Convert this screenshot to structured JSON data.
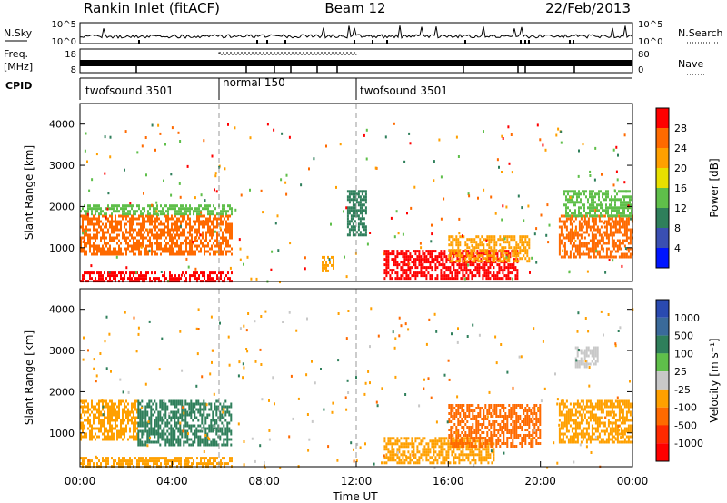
{
  "header": {
    "station": "Rankin Inlet (fitACF)",
    "beam": "Beam 12",
    "date": "22/Feb/2013"
  },
  "strips": {
    "nsky": {
      "label": "N.Sky",
      "right_label": "N.Search",
      "left_ticks": [
        "10^5",
        "10^0"
      ],
      "right_ticks": [
        "10^5",
        "10^0"
      ]
    },
    "freq": {
      "label_line1": "Freq.",
      "label_line2": "[MHz]",
      "right_label": "Nave",
      "left_ticks": [
        "18",
        "8"
      ],
      "right_ticks": [
        "80",
        "0"
      ]
    },
    "cpid": {
      "label": "CPID",
      "segments": [
        {
          "start": 0.0,
          "end": 6.05,
          "label": "twofsound 3501"
        },
        {
          "start": 6.05,
          "end": 12.0,
          "label": "normal 150"
        },
        {
          "start": 12.0,
          "end": 24.0,
          "label": "twofsound 3501"
        }
      ]
    }
  },
  "chart_data": [
    {
      "type": "heatmap",
      "title": "",
      "xlabel": "",
      "ylabel": "Slant Range [km]",
      "xlim": [
        0,
        24
      ],
      "ylim": [
        180,
        4500
      ],
      "y_ticks": [
        "1000",
        "2000",
        "3000",
        "4000"
      ],
      "y_tick_values": [
        1000,
        2000,
        3000,
        4000
      ],
      "colorbar": {
        "label": "Power [dB]",
        "levels": [
          0,
          4,
          8,
          12,
          16,
          20,
          24,
          28,
          32
        ],
        "tick_labels": [
          "4",
          "8",
          "12",
          "16",
          "20",
          "24",
          "28"
        ],
        "colors": [
          "#0015ff",
          "#3a4fb2",
          "#2f7f5b",
          "#5fbf4a",
          "#e8e000",
          "#ffa000",
          "#ff6a00",
          "#ff0000"
        ]
      },
      "regions": [
        {
          "t0": 0.0,
          "t1": 6.6,
          "r0": 850,
          "r1": 1800,
          "level": 24
        },
        {
          "t0": 0.0,
          "t1": 6.6,
          "r0": 180,
          "r1": 420,
          "level": 28
        },
        {
          "t0": 0.0,
          "t1": 6.6,
          "r0": 1800,
          "r1": 2050,
          "level": 12
        },
        {
          "t0": 10.5,
          "t1": 11.0,
          "r0": 450,
          "r1": 800,
          "level": 20
        },
        {
          "t0": 11.6,
          "t1": 12.4,
          "r0": 1300,
          "r1": 2400,
          "level": 8
        },
        {
          "t0": 13.2,
          "t1": 19.0,
          "r0": 250,
          "r1": 950,
          "level": 28
        },
        {
          "t0": 16.0,
          "t1": 19.5,
          "r0": 700,
          "r1": 1300,
          "level": 20
        },
        {
          "t0": 20.8,
          "t1": 24.0,
          "r0": 800,
          "r1": 1800,
          "level": 24
        },
        {
          "t0": 21.0,
          "t1": 24.0,
          "r0": 1800,
          "r1": 2400,
          "level": 12
        }
      ]
    },
    {
      "type": "heatmap",
      "title": "",
      "xlabel": "Time UT",
      "ylabel": "Slant Range [km]",
      "xlim": [
        0,
        24
      ],
      "ylim": [
        180,
        4500
      ],
      "x_ticks": [
        "00:00",
        "04:00",
        "08:00",
        "12:00",
        "16:00",
        "20:00",
        "00:00"
      ],
      "x_tick_values": [
        0,
        4,
        8,
        12,
        16,
        20,
        24
      ],
      "y_ticks": [
        "1000",
        "2000",
        "3000",
        "4000"
      ],
      "y_tick_values": [
        1000,
        2000,
        3000,
        4000
      ],
      "colorbar": {
        "label": "Velocity [m s⁻¹]",
        "tick_labels": [
          "1000",
          "500",
          "100",
          "25",
          "-25",
          "-100",
          "-500",
          "-1000"
        ],
        "colors": [
          "#2a4ab0",
          "#3a6a9a",
          "#2f7f5b",
          "#5fbf4a",
          "#c8c8c8",
          "#ffa000",
          "#ff6a00",
          "#ff2a00",
          "#ff0000"
        ]
      },
      "regions": [
        {
          "t0": 0.0,
          "t1": 2.5,
          "r0": 850,
          "r1": 1800,
          "level": -100
        },
        {
          "t0": 2.5,
          "t1": 6.6,
          "r0": 700,
          "r1": 1800,
          "level": 100
        },
        {
          "t0": 0.0,
          "t1": 6.6,
          "r0": 180,
          "r1": 420,
          "level": -100
        },
        {
          "t0": 13.2,
          "t1": 18.0,
          "r0": 300,
          "r1": 900,
          "level": -100
        },
        {
          "t0": 16.0,
          "t1": 20.0,
          "r0": 650,
          "r1": 1700,
          "level": -500
        },
        {
          "t0": 20.8,
          "t1": 24.0,
          "r0": 800,
          "r1": 1800,
          "level": -100
        },
        {
          "t0": 21.5,
          "t1": 22.5,
          "r0": 2600,
          "r1": 3100,
          "level": 25
        }
      ]
    }
  ]
}
